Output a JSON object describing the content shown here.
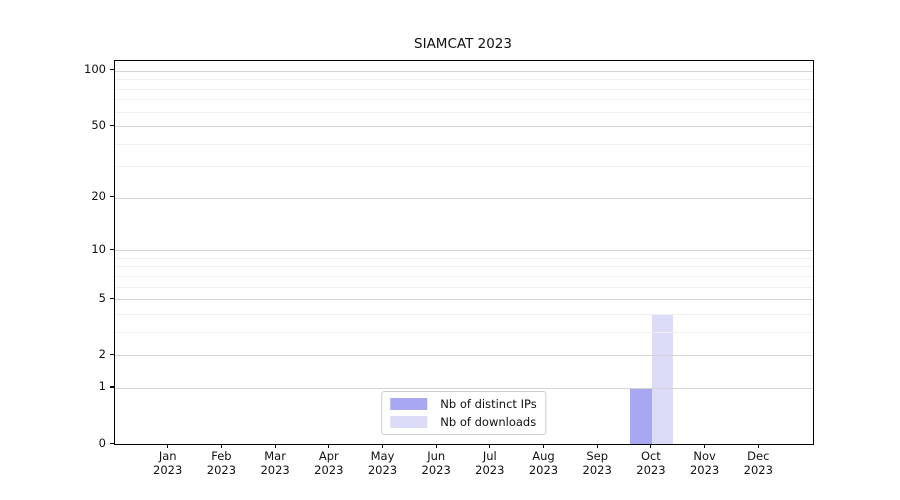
{
  "chart_data": {
    "type": "bar",
    "title": "SIAMCAT 2023",
    "categories": [
      "Jan",
      "Feb",
      "Mar",
      "Apr",
      "May",
      "Jun",
      "Jul",
      "Aug",
      "Sep",
      "Oct",
      "Nov",
      "Dec"
    ],
    "category_year": "2023",
    "series": [
      {
        "name": "Nb of distinct IPs",
        "color": "#a7a7f2",
        "values": [
          0,
          0,
          0,
          0,
          0,
          0,
          0,
          0,
          0,
          1,
          0,
          0
        ]
      },
      {
        "name": "Nb of downloads",
        "color": "#dcdcf9",
        "values": [
          0,
          0,
          0,
          0,
          0,
          0,
          0,
          0,
          0,
          4,
          0,
          0
        ]
      }
    ],
    "xlabel": "",
    "ylabel": "",
    "yscale": "log1p",
    "ylim": [
      0,
      113
    ],
    "yticks": [
      0,
      1,
      2,
      5,
      10,
      20,
      50,
      100
    ],
    "yticks_minor": [
      3,
      4,
      6,
      7,
      8,
      9,
      30,
      40,
      60,
      70,
      80,
      90
    ],
    "grid": true,
    "legend_position": "lower center"
  },
  "colors": {
    "grid_major": "#d4d4d4",
    "grid_minor": "#f0f0f0",
    "frame": "#000000",
    "text": "#111111",
    "background": "#ffffff"
  }
}
